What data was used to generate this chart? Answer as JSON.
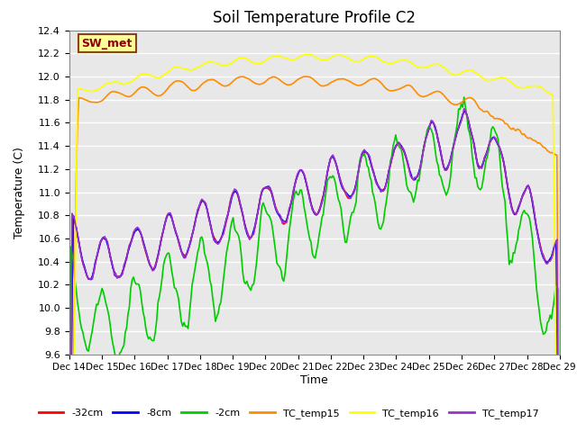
{
  "title": "Soil Temperature Profile C2",
  "xlabel": "Time",
  "ylabel": "Temperature (C)",
  "ylim": [
    9.6,
    12.4
  ],
  "background_color": "#e8e8e8",
  "annotation_text": "SW_met",
  "annotation_fg": "#8b0000",
  "annotation_bg": "#ffff99",
  "annotation_border": "#8b4513",
  "xtick_labels": [
    "Dec 14",
    "Dec 15",
    "Dec 16",
    "Dec 17",
    "Dec 18",
    "Dec 19",
    "Dec 20",
    "Dec 21",
    "Dec 22",
    "Dec 23",
    "Dec 24",
    "Dec 25",
    "Dec 26",
    "Dec 27",
    "Dec 28",
    "Dec 29"
  ],
  "ytick_vals": [
    9.6,
    9.8,
    10.0,
    10.2,
    10.4,
    10.6,
    10.8,
    11.0,
    11.2,
    11.4,
    11.6,
    11.8,
    12.0,
    12.2,
    12.4
  ],
  "legend_entries": [
    "-32cm",
    "-8cm",
    "-2cm",
    "TC_temp15",
    "TC_temp16",
    "TC_temp17"
  ],
  "legend_colors": [
    "#ff0000",
    "#0000ff",
    "#00cc00",
    "#ff8c00",
    "#ffff00",
    "#9932cc"
  ],
  "line_width": 1.2
}
